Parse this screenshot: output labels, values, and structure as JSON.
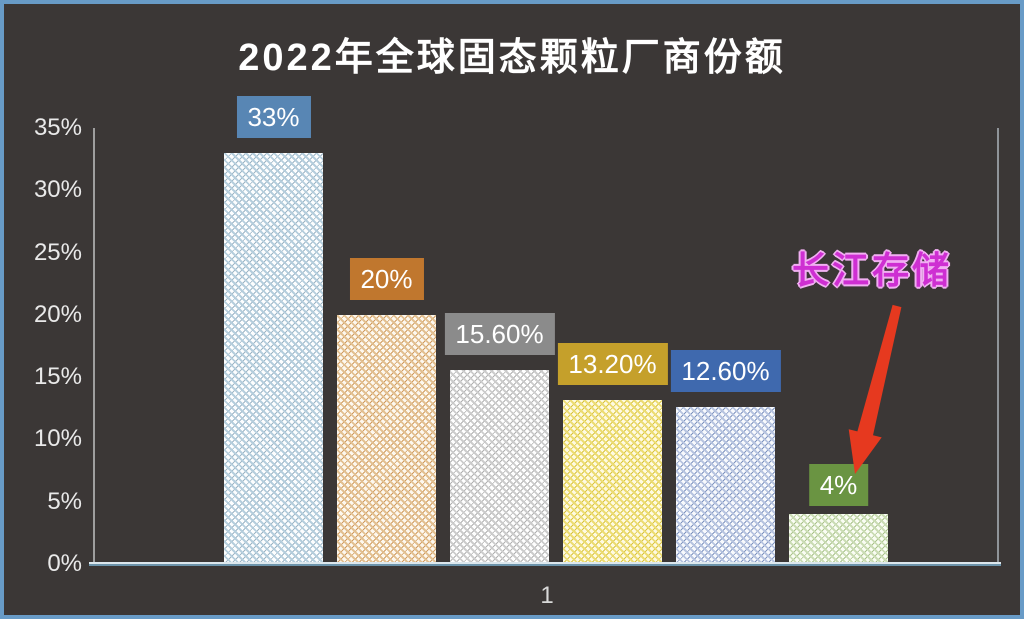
{
  "chart_data": {
    "type": "bar",
    "title": "2022年全球固态颗粒厂商份额",
    "categories": [
      "1"
    ],
    "xlabel": "",
    "ylabel": "",
    "ylim": [
      0,
      35
    ],
    "y_tick_step": 5,
    "y_ticks": [
      "0%",
      "5%",
      "10%",
      "15%",
      "20%",
      "25%",
      "30%",
      "35%"
    ],
    "grid": false,
    "legend": "none",
    "background_color": "#3b3736",
    "frame_border_color": "#689bc7",
    "series": [
      {
        "values": [
          33
        ],
        "data_label": "33%",
        "label_bg": "#5886b4"
      },
      {
        "values": [
          20
        ],
        "data_label": "20%",
        "label_bg": "#c0772e"
      },
      {
        "values": [
          15.6
        ],
        "data_label": "15.60%",
        "label_bg": "#8b8b8b"
      },
      {
        "values": [
          13.2
        ],
        "data_label": "13.20%",
        "label_bg": "#c5a02b"
      },
      {
        "values": [
          12.6
        ],
        "data_label": "12.60%",
        "label_bg": "#3f69ae"
      },
      {
        "values": [
          4
        ],
        "data_label": "4%",
        "label_bg": "#6a9442"
      }
    ],
    "annotations": [
      {
        "text": "长江存储",
        "text_color": "#ce2fd2",
        "outline_color": "#f1aff2",
        "arrow_color": "#e6391f",
        "points_to_label": "4%"
      }
    ]
  }
}
